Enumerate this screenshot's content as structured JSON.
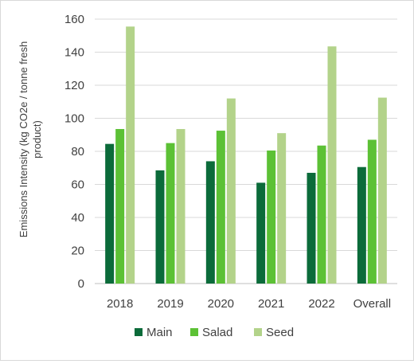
{
  "chart_data": {
    "type": "bar",
    "title": "",
    "xlabel": "",
    "ylabel": "Emissions Intensity (kg CO2e / tonne fresh product)",
    "categories": [
      "2018",
      "2019",
      "2020",
      "2021",
      "2022",
      "Overall"
    ],
    "series": [
      {
        "name": "Main",
        "color": "#0b6b3a",
        "values": [
          84.5,
          68.5,
          74,
          61,
          67,
          70.5
        ]
      },
      {
        "name": "Salad",
        "color": "#5cc135",
        "values": [
          93.5,
          85,
          92.5,
          80.5,
          83.5,
          87
        ]
      },
      {
        "name": "Seed",
        "color": "#b3d38a",
        "values": [
          155.5,
          93.5,
          112,
          91,
          143.5,
          112.5
        ]
      }
    ],
    "ylim": [
      0,
      160
    ],
    "yticks": [
      0,
      20,
      40,
      60,
      80,
      100,
      120,
      140,
      160
    ],
    "grid": true,
    "legend_position": "bottom"
  }
}
